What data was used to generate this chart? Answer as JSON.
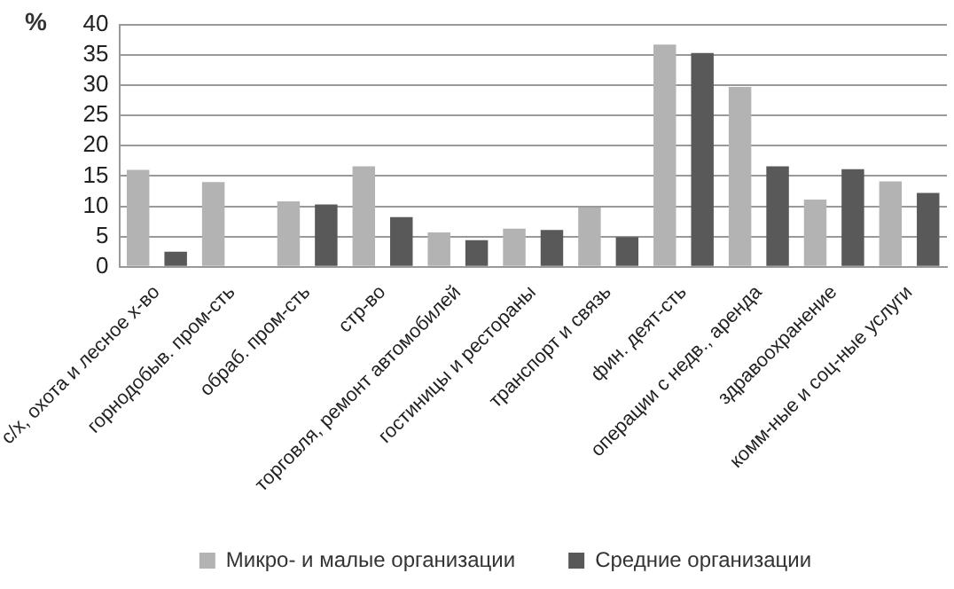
{
  "chart_data": {
    "type": "bar",
    "ylabel": "%",
    "categories": [
      "с/х, охота и лесное х-во",
      "горнодобыв. пром-сть",
      "обраб. пром-сть",
      "стр-во",
      "торговля, ремонт автомобилей",
      "гостиницы и рестораны",
      "транспорт и связь",
      "фин. деят-сть",
      "операции с недв., аренда",
      "здравоохранение",
      "комм-ные и соц-ные услуги"
    ],
    "series": [
      {
        "name": "Микро- и малые организации",
        "color": "#b3b3b3",
        "values": [
          16,
          14,
          10.8,
          16.6,
          5.7,
          6.3,
          9.8,
          36.7,
          29.7,
          11.1,
          14.1
        ]
      },
      {
        "name": "Средние организации",
        "color": "#595959",
        "values": [
          2.5,
          null,
          10.3,
          8.2,
          4.4,
          6.1,
          4.9,
          35.3,
          16.6,
          16.1,
          12.2
        ]
      }
    ],
    "ylim": [
      0,
      40
    ],
    "yticks": [
      0,
      5,
      10,
      15,
      20,
      25,
      30,
      35,
      40
    ],
    "grid": "y",
    "legend": "bottom"
  }
}
